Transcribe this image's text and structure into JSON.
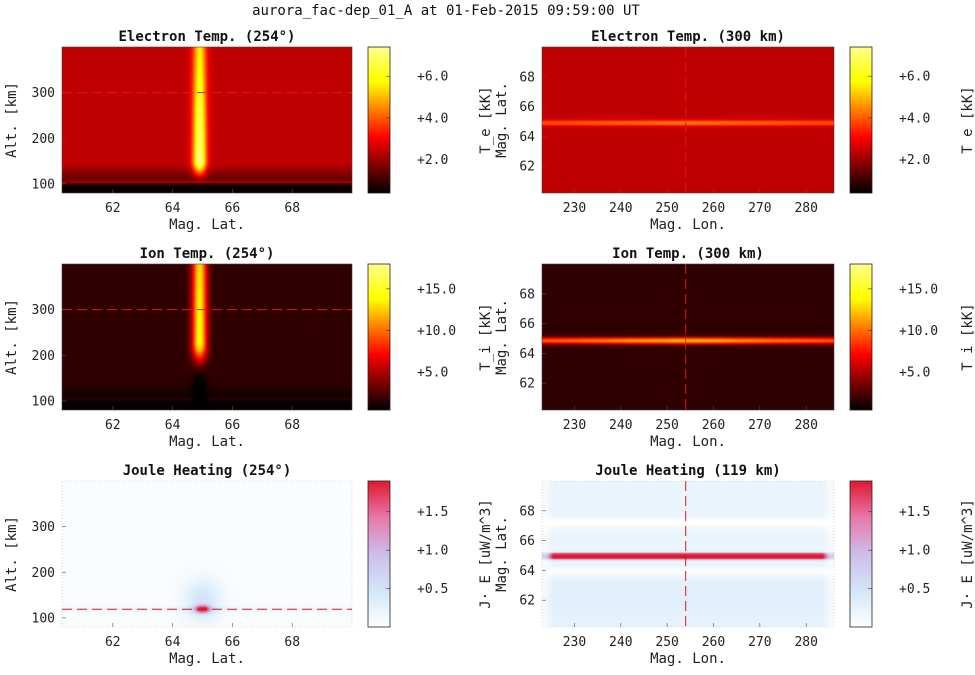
{
  "figure": {
    "title": "aurora_fac-dep_01_A at 01-Feb-2015 09:59:00 UT"
  },
  "colors": {
    "marker_line": "#e01818",
    "hot_dark": "#000000",
    "hot_red": "#b00000",
    "hot_yellow": "#ffff66",
    "cool_white": "#ffffff",
    "cool_red": "#e8102a"
  },
  "chart_data": [
    {
      "type": "heatmap",
      "title": "Electron Temp. (254°)",
      "xlabel": "Mag. Lat.",
      "ylabel": "Alt. [km]",
      "xlim": [
        60.3,
        70
      ],
      "ylim": [
        80,
        400
      ],
      "xticks": [
        62,
        64,
        66,
        68
      ],
      "yticks": [
        100,
        200,
        300
      ],
      "colormap": "hot",
      "clim": [
        0.4,
        7.4
      ],
      "colorbar_label": "T_e [kK]",
      "colorbar_ticks": [
        "+2.0",
        "+4.0",
        "+6.0"
      ],
      "colorbar_values": [
        2,
        4,
        6
      ],
      "marker": {
        "axis": "y",
        "value": 300
      },
      "field": {
        "kind": "alt-lat",
        "background": 2.4,
        "bottom_alt": 105,
        "bottom_value": 0.5,
        "feature": {
          "center": 64.9,
          "width": 0.22,
          "peak": 7.4,
          "peak_alt": 150,
          "top_value": 5.5
        }
      }
    },
    {
      "type": "heatmap",
      "title": "Electron Temp. (300 km)",
      "xlabel": "Mag. Lon.",
      "ylabel": "Mag. Lat.",
      "xlim": [
        223,
        286
      ],
      "ylim": [
        60.2,
        70
      ],
      "xticks": [
        230,
        240,
        250,
        260,
        270,
        280
      ],
      "yticks": [
        62,
        64,
        66,
        68
      ],
      "colormap": "hot",
      "clim": [
        0.4,
        7.4
      ],
      "colorbar_label": "T_e [kK]",
      "colorbar_ticks": [
        "+2.0",
        "+4.0",
        "+6.0"
      ],
      "colorbar_values": [
        2,
        4,
        6
      ],
      "marker": {
        "axis": "x",
        "value": 254
      },
      "field": {
        "kind": "lat-lon",
        "background": 2.4,
        "feature": {
          "center": 64.9,
          "width": 0.18,
          "peak": 4.6
        }
      }
    },
    {
      "type": "heatmap",
      "title": "Ion Temp. (254°)",
      "xlabel": "Mag. Lat.",
      "ylabel": "Alt. [km]",
      "xlim": [
        60.3,
        70
      ],
      "ylim": [
        80,
        400
      ],
      "xticks": [
        62,
        64,
        66,
        68
      ],
      "yticks": [
        100,
        200,
        300
      ],
      "colormap": "hot",
      "clim": [
        0.4,
        18
      ],
      "colorbar_label": "T_i [kK]",
      "colorbar_ticks": [
        "+5.0",
        "+10.0",
        "+15.0"
      ],
      "colorbar_values": [
        5,
        10,
        15
      ],
      "marker": {
        "axis": "y",
        "value": 300
      },
      "field": {
        "kind": "alt-lat",
        "background": 1.6,
        "bottom_alt": 105,
        "bottom_value": 0.5,
        "feature": {
          "center": 64.9,
          "width": 0.24,
          "peak": 14.5,
          "peak_alt": 230,
          "top_value": 13
        }
      }
    },
    {
      "type": "heatmap",
      "title": "Ion Temp. (300 km)",
      "xlabel": "Mag. Lon.",
      "ylabel": "Mag. Lat.",
      "xlim": [
        223,
        286
      ],
      "ylim": [
        60.2,
        70
      ],
      "xticks": [
        230,
        240,
        250,
        260,
        270,
        280
      ],
      "yticks": [
        62,
        64,
        66,
        68
      ],
      "colormap": "hot",
      "clim": [
        0.4,
        18
      ],
      "colorbar_label": "T_i [kK]",
      "colorbar_ticks": [
        "+5.0",
        "+10.0",
        "+15.0"
      ],
      "colorbar_values": [
        5,
        10,
        15
      ],
      "marker": {
        "axis": "x",
        "value": 254
      },
      "field": {
        "kind": "lat-lon",
        "background": 1.6,
        "feature": {
          "center": 64.85,
          "width": 0.22,
          "peak": 12.5
        }
      }
    },
    {
      "type": "heatmap",
      "title": "Joule Heating (254°)",
      "xlabel": "Mag. Lat.",
      "ylabel": "Alt. [km]",
      "xlim": [
        60.3,
        70
      ],
      "ylim": [
        80,
        400
      ],
      "xticks": [
        62,
        64,
        66,
        68
      ],
      "yticks": [
        100,
        200,
        300
      ],
      "colormap": "white-blue-red",
      "clim": [
        0,
        1.9
      ],
      "colorbar_label": "J· E [uW/m^3]",
      "colorbar_ticks": [
        "+0.5",
        "+1.0",
        "+1.5"
      ],
      "colorbar_values": [
        0.5,
        1.0,
        1.5
      ],
      "marker": {
        "axis": "y",
        "value": 119
      },
      "field": {
        "kind": "joule-alt",
        "center_lat": 65.0,
        "center_alt": 119,
        "peak": 1.9
      }
    },
    {
      "type": "heatmap",
      "title": "Joule Heating (119 km)",
      "xlabel": "Mag. Lon.",
      "ylabel": "Mag. Lat.",
      "xlim": [
        223,
        286
      ],
      "ylim": [
        60.2,
        70
      ],
      "xticks": [
        230,
        240,
        250,
        260,
        270,
        280
      ],
      "yticks": [
        62,
        64,
        66,
        68
      ],
      "colormap": "white-blue-red",
      "clim": [
        0,
        1.9
      ],
      "colorbar_label": "J· E [uW/m^3]",
      "colorbar_ticks": [
        "+0.5",
        "+1.0",
        "+1.5"
      ],
      "colorbar_values": [
        0.5,
        1.0,
        1.5
      ],
      "marker": {
        "axis": "x",
        "value": 254
      },
      "field": {
        "kind": "joule-lon",
        "center": 64.95,
        "peak": 1.9
      }
    }
  ]
}
